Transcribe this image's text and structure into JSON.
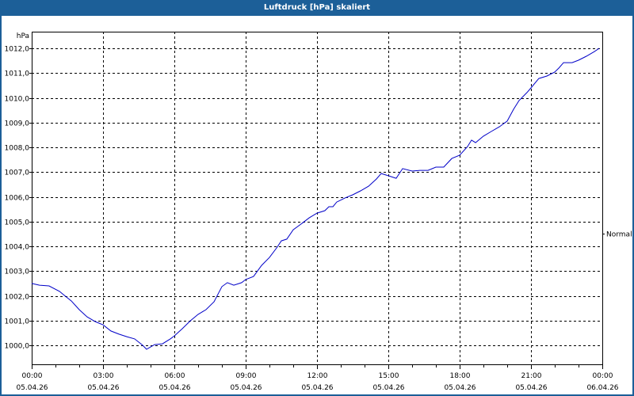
{
  "window": {
    "title": "Luftdruck [hPa] skaliert",
    "title_bar_color": "#1c5f98"
  },
  "chart_data": {
    "type": "line",
    "title": "Luftdruck [hPa] skaliert",
    "ylabel": "hPa",
    "xlabel": "",
    "ylim": [
      999.3,
      1012.6
    ],
    "y_ticks": [
      1000.0,
      1001.0,
      1002.0,
      1003.0,
      1004.0,
      1005.0,
      1006.0,
      1007.0,
      1008.0,
      1009.0,
      1010.0,
      1011.0,
      1012.0
    ],
    "y_tick_labels": [
      "1000,0",
      "1001,0",
      "1002,0",
      "1003,0",
      "1004,0",
      "1005,0",
      "1006,0",
      "1007,0",
      "1008,0",
      "1009,0",
      "1010,0",
      "1011,0",
      "1012,0"
    ],
    "x_range_hours": [
      0,
      24
    ],
    "x_ticks": [
      {
        "hour": 0,
        "time": "00:00",
        "date": "05.04.26"
      },
      {
        "hour": 3,
        "time": "03:00",
        "date": "05.04.26"
      },
      {
        "hour": 6,
        "time": "06:00",
        "date": "05.04.26"
      },
      {
        "hour": 9,
        "time": "09:00",
        "date": "05.04.26"
      },
      {
        "hour": 12,
        "time": "12:00",
        "date": "05.04.26"
      },
      {
        "hour": 15,
        "time": "15:00",
        "date": "05.04.26"
      },
      {
        "hour": 18,
        "time": "18:00",
        "date": "05.04.26"
      },
      {
        "hour": 21,
        "time": "21:00",
        "date": "05.04.26"
      },
      {
        "hour": 24,
        "time": "00:00",
        "date": "06.04.26"
      }
    ],
    "minor_tick_interval_hours": 1,
    "grid": true,
    "right_axis_annotation": {
      "label": "Normal",
      "value": 1004.5
    },
    "series": [
      {
        "name": "Luftdruck",
        "color": "#0000c8",
        "points": [
          [
            0.0,
            1002.5
          ],
          [
            0.33,
            1002.43
          ],
          [
            0.73,
            1002.4
          ],
          [
            1.17,
            1002.18
          ],
          [
            1.33,
            1002.05
          ],
          [
            1.67,
            1001.79
          ],
          [
            2.0,
            1001.44
          ],
          [
            2.33,
            1001.15
          ],
          [
            2.67,
            1000.96
          ],
          [
            3.0,
            1000.83
          ],
          [
            3.33,
            1000.58
          ],
          [
            3.67,
            1000.45
          ],
          [
            4.0,
            1000.35
          ],
          [
            4.33,
            1000.26
          ],
          [
            4.67,
            1000.0
          ],
          [
            4.83,
            999.84
          ],
          [
            5.17,
            1000.03
          ],
          [
            5.5,
            1000.06
          ],
          [
            5.83,
            1000.26
          ],
          [
            6.0,
            1000.38
          ],
          [
            6.33,
            1000.67
          ],
          [
            6.67,
            1000.99
          ],
          [
            7.0,
            1001.25
          ],
          [
            7.33,
            1001.44
          ],
          [
            7.67,
            1001.76
          ],
          [
            8.0,
            1002.37
          ],
          [
            8.23,
            1002.53
          ],
          [
            8.5,
            1002.43
          ],
          [
            8.83,
            1002.53
          ],
          [
            9.0,
            1002.66
          ],
          [
            9.33,
            1002.78
          ],
          [
            9.67,
            1003.23
          ],
          [
            10.0,
            1003.55
          ],
          [
            10.33,
            1003.97
          ],
          [
            10.5,
            1004.22
          ],
          [
            10.73,
            1004.29
          ],
          [
            11.0,
            1004.67
          ],
          [
            11.33,
            1004.9
          ],
          [
            11.67,
            1005.15
          ],
          [
            12.0,
            1005.34
          ],
          [
            12.33,
            1005.44
          ],
          [
            12.5,
            1005.6
          ],
          [
            12.67,
            1005.6
          ],
          [
            12.83,
            1005.79
          ],
          [
            13.17,
            1005.95
          ],
          [
            13.5,
            1006.08
          ],
          [
            13.83,
            1006.24
          ],
          [
            14.17,
            1006.43
          ],
          [
            14.5,
            1006.72
          ],
          [
            14.7,
            1006.94
          ],
          [
            15.0,
            1006.85
          ],
          [
            15.33,
            1006.75
          ],
          [
            15.6,
            1007.14
          ],
          [
            16.0,
            1007.04
          ],
          [
            16.33,
            1007.07
          ],
          [
            16.67,
            1007.07
          ],
          [
            17.0,
            1007.2
          ],
          [
            17.33,
            1007.2
          ],
          [
            17.67,
            1007.55
          ],
          [
            18.0,
            1007.68
          ],
          [
            18.33,
            1008.03
          ],
          [
            18.5,
            1008.29
          ],
          [
            18.67,
            1008.19
          ],
          [
            19.0,
            1008.45
          ],
          [
            19.33,
            1008.64
          ],
          [
            19.67,
            1008.83
          ],
          [
            20.0,
            1009.06
          ],
          [
            20.27,
            1009.54
          ],
          [
            20.5,
            1009.89
          ],
          [
            20.83,
            1010.21
          ],
          [
            21.0,
            1010.4
          ],
          [
            21.33,
            1010.78
          ],
          [
            21.67,
            1010.88
          ],
          [
            22.0,
            1011.04
          ],
          [
            22.17,
            1011.2
          ],
          [
            22.37,
            1011.42
          ],
          [
            22.73,
            1011.42
          ],
          [
            23.0,
            1011.52
          ],
          [
            23.33,
            1011.68
          ],
          [
            23.67,
            1011.87
          ],
          [
            23.87,
            1012.0
          ]
        ]
      }
    ]
  }
}
